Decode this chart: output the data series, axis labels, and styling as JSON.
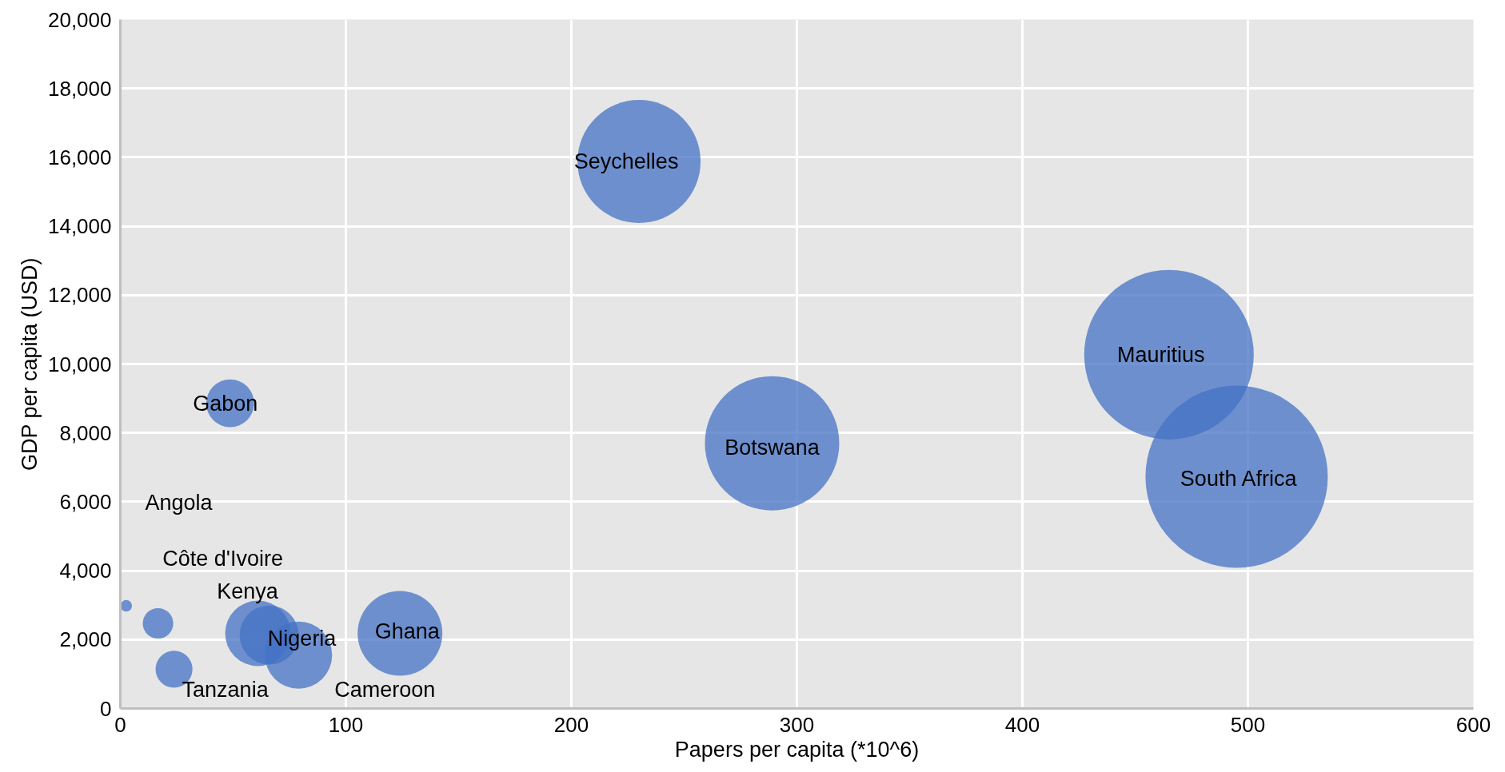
{
  "chart_data": {
    "type": "bubble",
    "xlabel": "Papers per capita (*10^6)",
    "ylabel": "GDP per capita (USD)",
    "x": [
      2.6,
      16.7,
      23.8,
      61,
      66,
      79,
      124,
      48.7,
      230,
      289,
      465,
      495
    ],
    "values": [
      2980,
      2470,
      1140,
      2180,
      2130,
      1550,
      2180,
      8860,
      15880,
      7700,
      10270,
      6730
    ],
    "sizes": [
      0.004,
      0.028,
      0.041,
      0.129,
      0.105,
      0.136,
      0.216,
      0.069,
      0.456,
      0.543,
      0.865,
      1
    ],
    "color": "#4472c4",
    "annotations": [
      "Angola",
      {
        "text": "Côte d'Ivoire",
        "x": 16.7,
        "y": 2470
      },
      {
        "text": "Tanzania",
        "x": 23.8,
        "y": 1140
      },
      {
        "text": "Kenya",
        "x": 61,
        "y": 2180
      },
      {
        "text": "Nigeria",
        "x": 66,
        "y": 2130
      },
      {
        "text": "Cameroon",
        "x": 79,
        "y": 1550
      },
      {
        "text": "Ghana",
        "x": 124,
        "y": 2180
      },
      {
        "text": "Gabon",
        "x": 48.7,
        "y": 8860
      },
      {
        "text": "Seychelles",
        "x": 230,
        "y": 15880
      },
      {
        "text": "Botswana",
        "x": 289,
        "y": 7700
      },
      {
        "text": "Mauritius",
        "x": 465,
        "y": 10270
      },
      {
        "text": "South Africa",
        "x": 495,
        "y": 6730
      }
    ],
    "xlim": [
      0,
      600
    ],
    "xticks": [
      0,
      100,
      200,
      300,
      400,
      500,
      600
    ],
    "ylim": [
      0,
      20000
    ],
    "yticks": [
      {
        "value": 0,
        "label": "0"
      },
      {
        "value": 2000,
        "label": "2,000"
      },
      {
        "value": 4000,
        "label": "4,000"
      },
      {
        "value": 6000,
        "label": "6,000"
      },
      {
        "value": 8000,
        "label": "8,000"
      },
      {
        "value": 10000,
        "label": "10,000"
      },
      {
        "value": 12000,
        "label": "12,000"
      },
      {
        "value": 14000,
        "label": "14,000"
      },
      {
        "value": 16000,
        "label": "16,000"
      },
      {
        "value": 18000,
        "label": "18,000"
      },
      {
        "value": 20000,
        "label": "20,000"
      }
    ],
    "grid": true
  }
}
